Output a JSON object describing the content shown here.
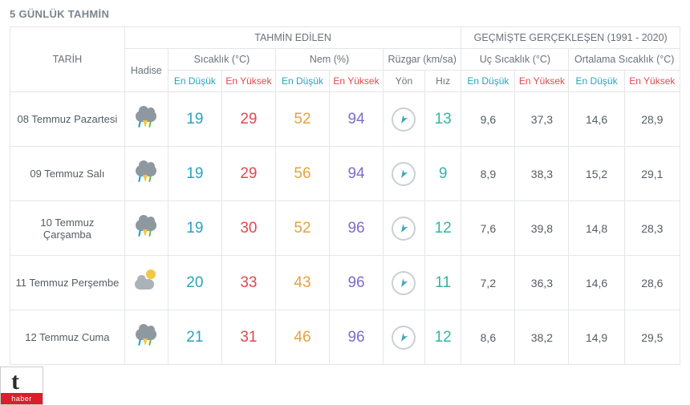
{
  "title": "5 GÜNLÜK TAHMİN",
  "headers": {
    "date": "TARİH",
    "forecast": "TAHMİN EDİLEN",
    "past": "GEÇMİŞTE GERÇEKLEŞEN (1991 - 2020)",
    "event": "Hadise",
    "temp": "Sıcaklık (°C)",
    "hum": "Nem (%)",
    "wind": "Rüzgar (km/sa)",
    "extreme": "Uç Sıcaklık (°C)",
    "avg": "Ortalama Sıcaklık (°C)",
    "low": "En Düşük",
    "high": "En Yüksek",
    "dir": "Yön",
    "spd": "Hız"
  },
  "colors": {
    "temp_low": "#2aa3bf",
    "temp_high": "#e0494f",
    "hum_low": "#e6a23c",
    "hum_high": "#7e6cc9",
    "wind_spd": "#34b4a4",
    "wind_arrow": "#3aa6b9",
    "border": "#e3e6e9",
    "header_text": "#6a737b",
    "title_text": "#7a858f",
    "hist_text": "#555c63"
  },
  "wind_arrow_rotation_deg": 210,
  "rows": [
    {
      "date": "08 Temmuz Pazartesi",
      "icon": "storm",
      "t_low": "19",
      "t_high": "29",
      "h_low": "52",
      "h_high": "94",
      "w_spd": "13",
      "ex_low": "9,6",
      "ex_high": "37,3",
      "av_low": "14,6",
      "av_high": "28,9"
    },
    {
      "date": "09 Temmuz Salı",
      "icon": "storm",
      "t_low": "19",
      "t_high": "29",
      "h_low": "56",
      "h_high": "94",
      "w_spd": "9",
      "ex_low": "8,9",
      "ex_high": "38,3",
      "av_low": "15,2",
      "av_high": "29,1"
    },
    {
      "date": "10 Temmuz Çarşamba",
      "icon": "storm",
      "t_low": "19",
      "t_high": "30",
      "h_low": "52",
      "h_high": "96",
      "w_spd": "12",
      "ex_low": "7,6",
      "ex_high": "39,8",
      "av_low": "14,8",
      "av_high": "28,3"
    },
    {
      "date": "11 Temmuz Perşembe",
      "icon": "partly",
      "t_low": "20",
      "t_high": "33",
      "h_low": "43",
      "h_high": "96",
      "w_spd": "11",
      "ex_low": "7,2",
      "ex_high": "36,3",
      "av_low": "14,6",
      "av_high": "28,6"
    },
    {
      "date": "12 Temmuz Cuma",
      "icon": "storm",
      "t_low": "21",
      "t_high": "31",
      "h_low": "46",
      "h_high": "96",
      "w_spd": "12",
      "ex_low": "8,6",
      "ex_high": "38,2",
      "av_low": "14,9",
      "av_high": "29,5"
    }
  ],
  "logo": {
    "letter": "t",
    "label": "haber"
  }
}
